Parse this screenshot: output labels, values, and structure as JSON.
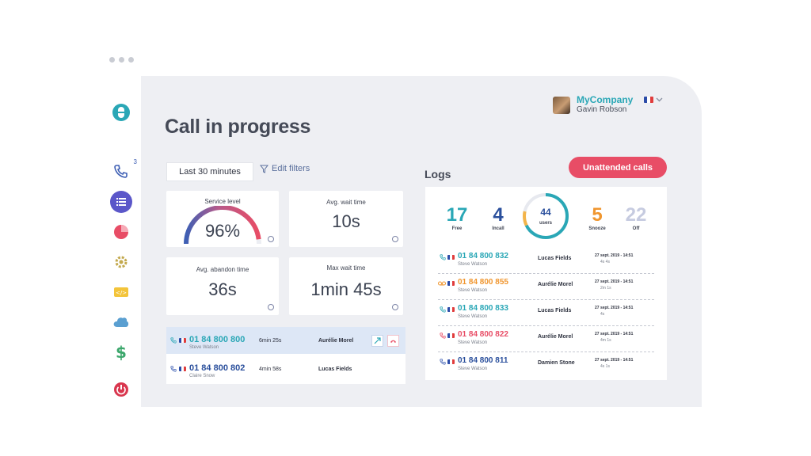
{
  "header": {
    "company": "MyCompany",
    "user": "Gavin Robson",
    "language": "fr"
  },
  "page": {
    "title": "Call in progress"
  },
  "filters": {
    "period_label": "Last 30 minutes",
    "edit_label": "Edit filters"
  },
  "sidebar": {
    "phone_badge": "3",
    "items": [
      "calls-icon",
      "list-icon",
      "stats-pie-icon",
      "settings-gear-icon",
      "integrations-icon",
      "cloud-icon",
      "billing-dollar-icon",
      "power-icon"
    ]
  },
  "kpis": {
    "service_level": {
      "title": "Service level",
      "value": "96%",
      "fraction": 0.96
    },
    "avg_wait": {
      "title": "Avg. wait time",
      "value": "10s"
    },
    "avg_abandon": {
      "title": "Avg. abandon time",
      "value": "36s"
    },
    "max_wait": {
      "title": "Max wait time",
      "value": "1min 45s"
    }
  },
  "active_calls": [
    {
      "number": "01 84 800 800",
      "contact": "Steve Watson",
      "duration": "6min 25s",
      "agent": "Aurélie Morel"
    },
    {
      "number": "01 84 800 802",
      "contact": "Claire Snow",
      "duration": "4min 58s",
      "agent": "Lucas Fields"
    }
  ],
  "logs": {
    "title": "Logs",
    "unattended_label": "Unattended calls",
    "stats": {
      "free": {
        "value": "17",
        "label": "Free"
      },
      "incall": {
        "value": "4",
        "label": "Incall"
      },
      "users": {
        "value": "44",
        "label": "users"
      },
      "snooze": {
        "value": "5",
        "label": "Snooze"
      },
      "off": {
        "value": "22",
        "label": "Off"
      }
    },
    "rows": [
      {
        "number": "01 84 800 832",
        "contact": "Steve Watson",
        "agent": "Lucas Fields",
        "date": "27 sept. 2019 - 14:51",
        "duration": "4s 4s",
        "color": "#2aa7b6"
      },
      {
        "number": "01 84 800 855",
        "contact": "Steve Watson",
        "agent": "Aurélie Morel",
        "date": "27 sept. 2019 - 14:51",
        "duration": "2m 1s",
        "color": "#f0962f"
      },
      {
        "number": "01 84 800 833",
        "contact": "Steve Watson",
        "agent": "Lucas Fields",
        "date": "27 sept. 2019 - 14:51",
        "duration": "4s",
        "color": "#2aa7b6"
      },
      {
        "number": "01 84 800 822",
        "contact": "Steve Watson",
        "agent": "Aurélie Morel",
        "date": "27 sept. 2019 - 14:51",
        "duration": "4m 1s",
        "color": "#e84d66"
      },
      {
        "number": "01 84 800 811",
        "contact": "Steve Watson",
        "agent": "Damien Stone",
        "date": "27 sept. 2019 - 14:51",
        "duration": "4s 1s",
        "color": "#2a4f9c"
      }
    ]
  }
}
